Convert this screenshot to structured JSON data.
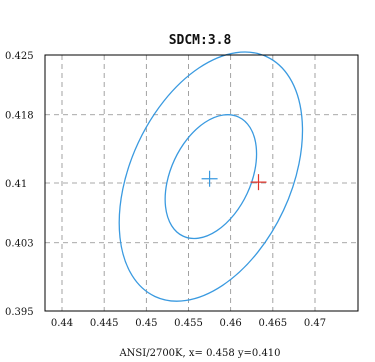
{
  "chart_data": {
    "type": "scatter",
    "title": "SDCM:3.8",
    "xlabel": "ANSI/2700K, x= 0.458 y=0.410",
    "ylabel": "",
    "xlim": [
      0.44,
      0.475
    ],
    "ylim": [
      0.395,
      0.425
    ],
    "x_ticks": [
      {
        "value": 0.44,
        "label": "0.44"
      },
      {
        "value": 0.445,
        "label": "0.445"
      },
      {
        "value": 0.45,
        "label": "0.45"
      },
      {
        "value": 0.455,
        "label": "0.455"
      },
      {
        "value": 0.46,
        "label": "0.46"
      },
      {
        "value": 0.465,
        "label": "0.465"
      },
      {
        "value": 0.47,
        "label": "0.47"
      }
    ],
    "y_ticks": [
      {
        "value": 0.395,
        "label": "0.395"
      },
      {
        "value": 0.403,
        "label": "0.403"
      },
      {
        "value": 0.41,
        "label": "0.41"
      },
      {
        "value": 0.418,
        "label": "0.418"
      },
      {
        "value": 0.425,
        "label": "0.425"
      }
    ],
    "grid": true,
    "ellipses": [
      {
        "cx": 0.45765,
        "cy": 0.41075,
        "rx": 0.00475,
        "ry": 0.0077,
        "rotation_deg": 25,
        "color": "#3a9ae0"
      },
      {
        "cx": 0.45765,
        "cy": 0.41075,
        "rx": 0.0095,
        "ry": 0.0155,
        "rotation_deg": 25,
        "color": "#3a9ae0"
      }
    ],
    "points": [
      {
        "x": 0.4575,
        "y": 0.4105,
        "marker": "+",
        "color": "#3a9ae0"
      },
      {
        "x": 0.4633,
        "y": 0.4101,
        "marker": "+",
        "color": "#e0342b"
      }
    ]
  }
}
